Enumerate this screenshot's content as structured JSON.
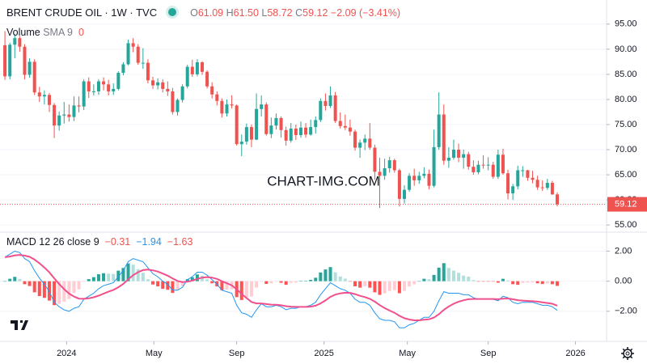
{
  "header": {
    "symbol": "BRENT CRUDE OIL · 1W · TVC",
    "open_label": "O",
    "open": "61.09",
    "high_label": "H",
    "high": "61.50",
    "low_label": "L",
    "low": "58.72",
    "close_label": "C",
    "close": "59.12",
    "change": "−2.09 (−3.41%)",
    "volume_title": "Volume",
    "volume_params": "SMA 9",
    "volume_value": "0",
    "watermark": "CHART-IMG.COM"
  },
  "chart_data": [
    {
      "type": "candlestick",
      "up_color": "#26a69a",
      "down_color": "#ef5350",
      "xlim": [
        -1,
        122
      ],
      "ylim": [
        53.9,
        99.8
      ],
      "yticks": [
        {
          "value": 55,
          "label": "55.00"
        },
        {
          "value": 60,
          "label": "60.00"
        },
        {
          "value": 65,
          "label": "65.00"
        },
        {
          "value": 70,
          "label": "70.00"
        },
        {
          "value": 75,
          "label": "75.00"
        },
        {
          "value": 80,
          "label": "80.00"
        },
        {
          "value": 85,
          "label": "85.00"
        },
        {
          "value": 90,
          "label": "90.00"
        },
        {
          "value": 95,
          "label": "95.00"
        }
      ],
      "last_price": 59.12,
      "candles": [
        [
          90.8,
          93.6,
          83.9,
          84.6
        ],
        [
          84.6,
          91.3,
          84.0,
          90.9
        ],
        [
          90.9,
          93.0,
          88.2,
          92.2
        ],
        [
          92.2,
          92.6,
          89.5,
          90.5
        ],
        [
          90.5,
          91.0,
          84.0,
          84.9
        ],
        [
          84.9,
          88.2,
          84.3,
          87.5
        ],
        [
          87.5,
          88.0,
          80.9,
          81.4
        ],
        [
          81.4,
          82.5,
          79.5,
          80.6
        ],
        [
          80.6,
          81.8,
          79.0,
          80.9
        ],
        [
          80.9,
          81.3,
          77.5,
          78.9
        ],
        [
          78.9,
          79.3,
          72.3,
          74.8
        ],
        [
          74.8,
          77.6,
          73.8,
          76.8
        ],
        [
          76.8,
          79.5,
          75.2,
          77.0
        ],
        [
          77.0,
          79.0,
          75.6,
          76.5
        ],
        [
          76.5,
          80.6,
          75.7,
          78.8
        ],
        [
          78.8,
          80.6,
          77.4,
          78.6
        ],
        [
          78.6,
          84.0,
          77.9,
          83.6
        ],
        [
          83.6,
          84.4,
          80.3,
          81.6
        ],
        [
          81.6,
          83.0,
          80.8,
          81.6
        ],
        [
          81.6,
          84.0,
          80.9,
          83.6
        ],
        [
          83.6,
          84.4,
          81.8,
          83.0
        ],
        [
          83.0,
          83.9,
          80.8,
          81.6
        ],
        [
          81.6,
          83.2,
          80.9,
          82.1
        ],
        [
          82.1,
          85.6,
          81.8,
          85.3
        ],
        [
          85.3,
          87.4,
          84.8,
          87.0
        ],
        [
          87.0,
          91.9,
          86.8,
          91.2
        ],
        [
          91.2,
          92.2,
          89.4,
          90.5
        ],
        [
          90.5,
          91.0,
          86.9,
          87.3
        ],
        [
          87.3,
          90.2,
          86.1,
          87.3
        ],
        [
          87.3,
          88.0,
          83.2,
          83.8
        ],
        [
          83.8,
          84.5,
          82.1,
          82.8
        ],
        [
          82.8,
          84.2,
          82.0,
          83.4
        ],
        [
          83.4,
          84.0,
          81.4,
          82.1
        ],
        [
          82.1,
          83.6,
          80.7,
          81.6
        ],
        [
          81.6,
          82.3,
          77.0,
          77.5
        ],
        [
          77.5,
          80.2,
          76.8,
          79.9
        ],
        [
          79.9,
          83.0,
          79.4,
          82.6
        ],
        [
          82.6,
          86.9,
          82.2,
          86.5
        ],
        [
          86.5,
          87.9,
          84.5,
          85.0
        ],
        [
          85.0,
          88.0,
          84.6,
          87.4
        ],
        [
          87.4,
          87.6,
          84.9,
          85.5
        ],
        [
          85.5,
          85.8,
          82.2,
          82.6
        ],
        [
          82.6,
          83.4,
          80.2,
          81.0
        ],
        [
          81.0,
          81.6,
          78.8,
          79.7
        ],
        [
          79.7,
          80.2,
          76.4,
          77.2
        ],
        [
          77.2,
          80.0,
          76.6,
          79.0
        ],
        [
          79.0,
          80.8,
          78.2,
          78.8
        ],
        [
          78.8,
          79.0,
          70.8,
          71.1
        ],
        [
          71.1,
          73.0,
          68.7,
          71.6
        ],
        [
          71.6,
          75.2,
          71.0,
          74.5
        ],
        [
          74.5,
          75.0,
          70.5,
          72.0
        ],
        [
          72.0,
          81.2,
          71.9,
          78.1
        ],
        [
          78.1,
          80.8,
          76.6,
          79.0
        ],
        [
          79.0,
          79.4,
          72.8,
          73.1
        ],
        [
          73.1,
          76.4,
          72.3,
          74.8
        ],
        [
          74.8,
          77.2,
          74.0,
          76.3
        ],
        [
          76.3,
          76.6,
          72.4,
          73.9
        ],
        [
          73.9,
          74.6,
          70.8,
          71.8
        ],
        [
          71.8,
          75.3,
          71.4,
          74.2
        ],
        [
          74.2,
          75.0,
          71.9,
          72.9
        ],
        [
          72.9,
          75.6,
          72.4,
          74.4
        ],
        [
          74.4,
          75.3,
          72.4,
          73.0
        ],
        [
          73.0,
          76.0,
          72.8,
          74.5
        ],
        [
          74.5,
          76.6,
          73.2,
          75.9
        ],
        [
          75.9,
          80.2,
          75.5,
          79.7
        ],
        [
          79.7,
          81.2,
          77.8,
          78.7
        ],
        [
          78.7,
          82.6,
          78.3,
          80.8
        ],
        [
          80.8,
          81.5,
          75.3,
          75.7
        ],
        [
          75.7,
          77.4,
          74.2,
          74.7
        ],
        [
          74.7,
          77.0,
          73.9,
          74.4
        ],
        [
          74.4,
          76.0,
          72.8,
          73.6
        ],
        [
          73.6,
          74.0,
          69.8,
          70.4
        ],
        [
          70.4,
          72.0,
          68.4,
          71.4
        ],
        [
          71.4,
          73.0,
          69.9,
          72.2
        ],
        [
          72.2,
          75.3,
          70.0,
          70.4
        ],
        [
          70.4,
          71.0,
          64.0,
          65.6
        ],
        [
          65.6,
          68.4,
          58.4,
          64.8
        ],
        [
          64.8,
          68.2,
          64.0,
          66.3
        ],
        [
          66.3,
          68.6,
          65.4,
          67.9
        ],
        [
          67.9,
          68.2,
          65.4,
          65.9
        ],
        [
          65.9,
          66.2,
          58.7,
          60.2
        ],
        [
          60.2,
          62.9,
          59.3,
          62.0
        ],
        [
          62.0,
          65.3,
          61.6,
          64.8
        ],
        [
          64.8,
          66.2,
          62.8,
          63.9
        ],
        [
          63.9,
          65.6,
          63.2,
          64.8
        ],
        [
          64.8,
          66.5,
          64.3,
          65.2
        ],
        [
          65.2,
          66.0,
          62.1,
          62.8
        ],
        [
          62.8,
          74.0,
          62.5,
          70.5
        ],
        [
          70.5,
          81.4,
          70.0,
          77.0
        ],
        [
          77.0,
          79.0,
          67.0,
          67.8
        ],
        [
          67.8,
          70.5,
          66.4,
          68.4
        ],
        [
          68.4,
          72.0,
          68.0,
          70.0
        ],
        [
          70.0,
          71.2,
          67.5,
          68.4
        ],
        [
          68.4,
          70.0,
          66.2,
          69.1
        ],
        [
          69.1,
          69.6,
          66.0,
          66.6
        ],
        [
          66.6,
          67.9,
          65.0,
          65.5
        ],
        [
          65.5,
          67.8,
          65.1,
          67.0
        ],
        [
          67.0,
          68.9,
          66.2,
          66.9
        ],
        [
          66.9,
          68.5,
          65.9,
          67.0
        ],
        [
          67.0,
          67.6,
          64.2,
          64.6
        ],
        [
          64.6,
          70.0,
          64.2,
          69.0
        ],
        [
          69.0,
          70.2,
          65.0,
          65.3
        ],
        [
          65.3,
          66.0,
          60.1,
          61.3
        ],
        [
          61.3,
          63.2,
          60.0,
          62.7
        ],
        [
          62.7,
          66.8,
          62.1,
          65.9
        ],
        [
          65.9,
          66.7,
          64.6,
          65.9
        ],
        [
          65.9,
          66.0,
          63.8,
          64.4
        ],
        [
          64.4,
          65.8,
          63.3,
          64.0
        ],
        [
          64.0,
          64.8,
          62.0,
          62.5
        ],
        [
          62.5,
          63.9,
          61.8,
          62.4
        ],
        [
          62.4,
          64.2,
          62.0,
          63.4
        ],
        [
          63.4,
          63.8,
          61.0,
          61.1
        ],
        [
          61.09,
          61.5,
          58.72,
          59.12
        ]
      ]
    },
    {
      "type": "macd",
      "title": "MACD",
      "params": "12 26 close 9",
      "xlim": [
        -1,
        122
      ],
      "ylim": [
        -4.0,
        3.1
      ],
      "yticks": [
        {
          "value": 2,
          "label": "2.00"
        },
        {
          "value": 0,
          "label": "0.00"
        },
        {
          "value": -2,
          "label": "−2.00"
        }
      ],
      "xticks": [
        {
          "value": 12.5,
          "label": "2024"
        },
        {
          "value": 30.2,
          "label": "May"
        },
        {
          "value": 47,
          "label": "Sep"
        },
        {
          "value": 64.7,
          "label": "2025"
        },
        {
          "value": 81.6,
          "label": "May"
        },
        {
          "value": 98,
          "label": "Sep"
        },
        {
          "value": 115.7,
          "label": "2026"
        }
      ],
      "histogram": {
        "name": "−0.31",
        "colors": [
          "#26a69a",
          "#b2dfdb",
          "#ff5252",
          "#ffcdd2"
        ],
        "values": [
          0,
          0.16,
          0.29,
          0.15,
          -0.2,
          -0.32,
          -0.74,
          -0.99,
          -1.11,
          -1.29,
          -1.59,
          -1.51,
          -1.37,
          -1.18,
          -0.78,
          -0.54,
          -0.03,
          0.14,
          0.27,
          0.46,
          0.53,
          0.5,
          0.48,
          0.7,
          0.88,
          1.18,
          1.1,
          0.8,
          0.56,
          0.13,
          -0.22,
          -0.34,
          -0.51,
          -0.57,
          -0.78,
          -0.62,
          -0.34,
          0.13,
          0.26,
          0.45,
          0.36,
          0.13,
          -0.14,
          -0.35,
          -0.6,
          -0.56,
          -0.53,
          -1.06,
          -1.25,
          -1.08,
          -1.02,
          -0.42,
          -0.02,
          -0.18,
          -0.14,
          -0.03,
          -0.1,
          -0.24,
          -0.11,
          -0.09,
          0.01,
          0.01,
          0.09,
          0.23,
          0.58,
          0.78,
          0.94,
          0.59,
          0.31,
          0.17,
          -0.02,
          -0.34,
          -0.43,
          -0.34,
          -0.43,
          -0.74,
          -0.91,
          -0.81,
          -0.65,
          -0.6,
          -0.8,
          -0.64,
          -0.35,
          -0.2,
          0,
          0.16,
          0.13,
          0.42,
          0.9,
          1.2,
          0.88,
          0.7,
          0.56,
          0.37,
          0.3,
          0.08,
          -0.02,
          -0.02,
          -0.02,
          -0.02,
          -0.1,
          0.16,
          0.05,
          -0.2,
          -0.24,
          -0.11,
          -0.09,
          -0.07,
          -0.14,
          -0.19,
          -0.15,
          -0.2,
          -0.31
        ]
      },
      "series": [
        {
          "name": "−1.94",
          "color": "#2196f3",
          "values": [
            1.6,
            1.8,
            2.0,
            1.9,
            1.5,
            1.3,
            0.7,
            0.2,
            -0.2,
            -0.7,
            -1.4,
            -1.7,
            -1.9,
            -2.0,
            -1.8,
            -1.7,
            -1.2,
            -1.0,
            -0.8,
            -0.5,
            -0.3,
            -0.2,
            -0.1,
            0.3,
            0.7,
            1.3,
            1.5,
            1.4,
            1.3,
            0.9,
            0.5,
            0.3,
            0.0,
            -0.2,
            -0.6,
            -0.6,
            -0.4,
            0.1,
            0.3,
            0.6,
            0.6,
            0.4,
            0.1,
            -0.2,
            -0.6,
            -0.7,
            -0.8,
            -1.6,
            -2.1,
            -2.2,
            -2.4,
            -1.9,
            -1.5,
            -1.7,
            -1.7,
            -1.6,
            -1.7,
            -1.9,
            -1.8,
            -1.8,
            -1.7,
            -1.7,
            -1.6,
            -1.4,
            -0.9,
            -0.5,
            -0.1,
            -0.3,
            -0.5,
            -0.6,
            -0.8,
            -1.2,
            -1.4,
            -1.4,
            -1.6,
            -2.1,
            -2.5,
            -2.6,
            -2.6,
            -2.7,
            -3.1,
            -3.1,
            -2.9,
            -2.8,
            -2.6,
            -2.4,
            -2.4,
            -2.0,
            -1.3,
            -0.7,
            -0.8,
            -0.8,
            -0.8,
            -0.9,
            -0.9,
            -1.1,
            -1.2,
            -1.2,
            -1.2,
            -1.2,
            -1.3,
            -1.0,
            -1.1,
            -1.4,
            -1.5,
            -1.4,
            -1.4,
            -1.4,
            -1.5,
            -1.6,
            -1.6,
            -1.7,
            -1.94
          ]
        },
        {
          "name": "−1.63",
          "color": "#f0508c",
          "values": [
            1.6,
            1.64,
            1.71,
            1.75,
            1.7,
            1.62,
            1.44,
            1.19,
            0.91,
            0.59,
            0.19,
            -0.19,
            -0.53,
            -0.82,
            -1.02,
            -1.16,
            -1.17,
            -1.14,
            -1.07,
            -0.96,
            -0.83,
            -0.7,
            -0.58,
            -0.4,
            -0.18,
            0.12,
            0.4,
            0.6,
            0.74,
            0.77,
            0.72,
            0.64,
            0.51,
            0.37,
            0.18,
            0.02,
            -0.06,
            -0.03,
            0.04,
            0.15,
            0.24,
            0.27,
            0.24,
            0.15,
            0,
            -0.14,
            -0.27,
            -0.54,
            -0.85,
            -1.12,
            -1.38,
            -1.48,
            -1.48,
            -1.52,
            -1.56,
            -1.57,
            -1.6,
            -1.66,
            -1.69,
            -1.71,
            -1.71,
            -1.71,
            -1.69,
            -1.63,
            -1.48,
            -1.28,
            -1.04,
            -0.89,
            -0.81,
            -0.77,
            -0.78,
            -0.86,
            -0.97,
            -1.06,
            -1.17,
            -1.36,
            -1.59,
            -1.79,
            -1.95,
            -2.1,
            -2.3,
            -2.46,
            -2.55,
            -2.6,
            -2.6,
            -2.56,
            -2.53,
            -2.42,
            -2.2,
            -1.9,
            -1.68,
            -1.5,
            -1.36,
            -1.27,
            -1.2,
            -1.18,
            -1.18,
            -1.18,
            -1.18,
            -1.18,
            -1.2,
            -1.16,
            -1.15,
            -1.2,
            -1.26,
            -1.29,
            -1.31,
            -1.33,
            -1.36,
            -1.41,
            -1.45,
            -1.5,
            -1.63
          ]
        }
      ]
    }
  ]
}
